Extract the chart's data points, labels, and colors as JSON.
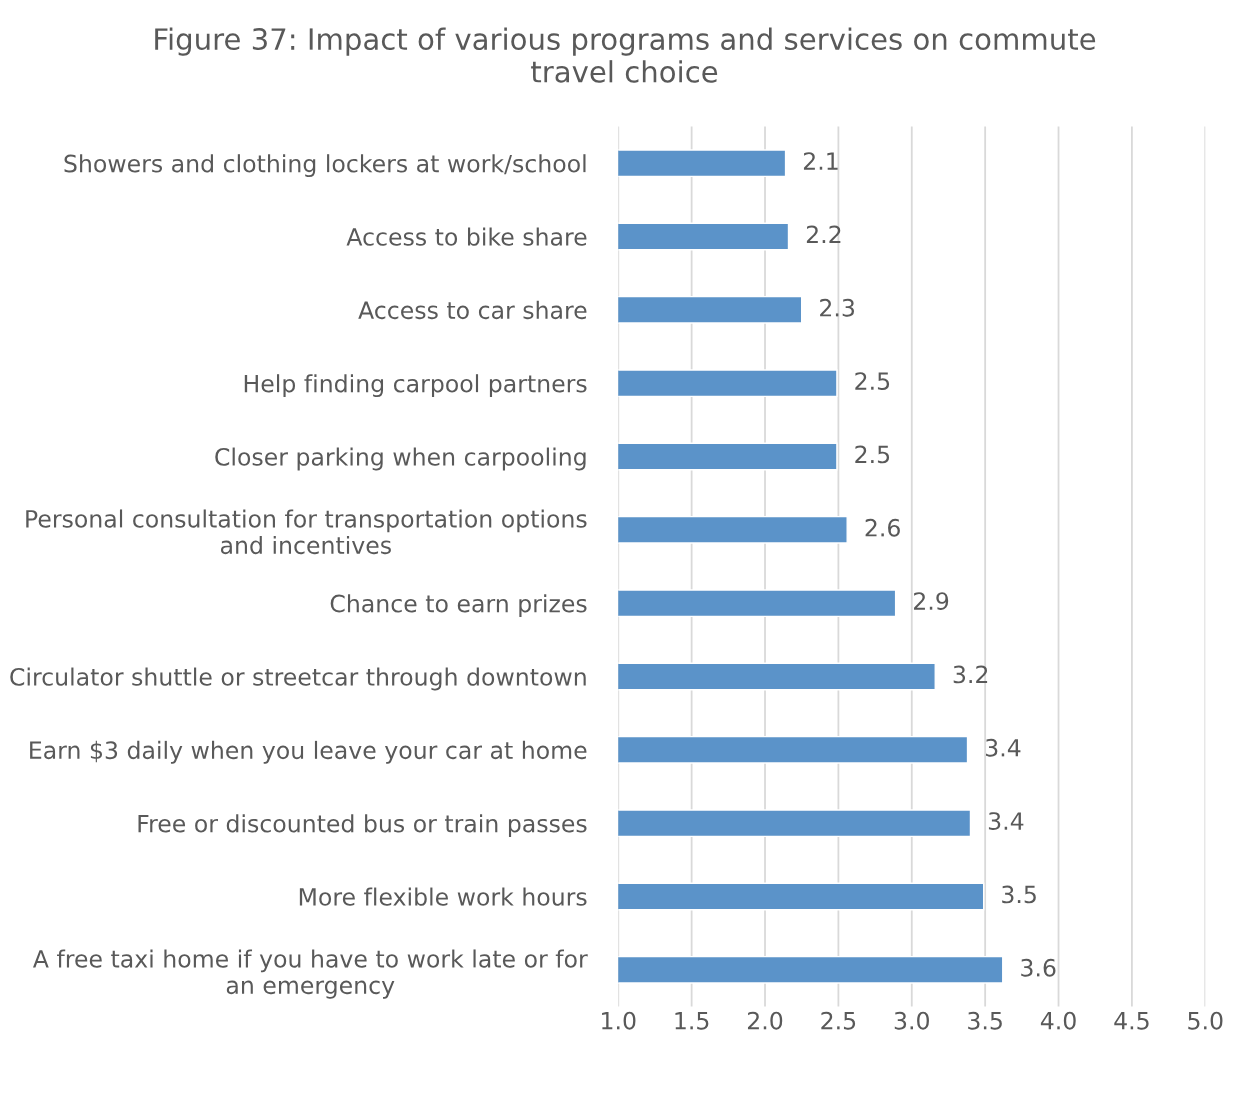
{
  "chart_data": {
    "type": "bar",
    "orientation": "horizontal",
    "title": "Figure 37: Impact of various programs and services on commute\ntravel choice",
    "categories": [
      "Showers and clothing lockers at work/school",
      "Access to bike share",
      "Access to car share",
      "Help finding carpool partners",
      "Closer parking when carpooling",
      "Personal consultation for transportation options\nand incentives",
      "Chance to earn prizes",
      "Circulator shuttle or streetcar through downtown",
      "Earn $3 daily when you leave your car at home",
      "Free or discounted bus or train passes",
      "More flexible work hours",
      "A free taxi home if you have to work late or for\nan emergency"
    ],
    "values": [
      2.14,
      2.16,
      2.25,
      2.49,
      2.49,
      2.56,
      2.89,
      3.16,
      3.38,
      3.4,
      3.49,
      3.62
    ],
    "value_labels": [
      "2.1",
      "2.2",
      "2.3",
      "2.5",
      "2.5",
      "2.6",
      "2.9",
      "3.2",
      "3.4",
      "3.4",
      "3.5",
      "3.6"
    ],
    "color": "#5b93c9",
    "xlim": [
      1.0,
      5.0
    ],
    "xticks": [
      {
        "value": 1.0,
        "label": "1.0"
      },
      {
        "value": 1.5,
        "label": "1.5"
      },
      {
        "value": 2.0,
        "label": "2.0"
      },
      {
        "value": 2.5,
        "label": "2.5"
      },
      {
        "value": 3.0,
        "label": "3.0"
      },
      {
        "value": 3.5,
        "label": "3.5"
      },
      {
        "value": 4.0,
        "label": "4.0"
      },
      {
        "value": 4.5,
        "label": "4.5"
      },
      {
        "value": 5.0,
        "label": "5.0"
      }
    ],
    "grid": "x"
  }
}
